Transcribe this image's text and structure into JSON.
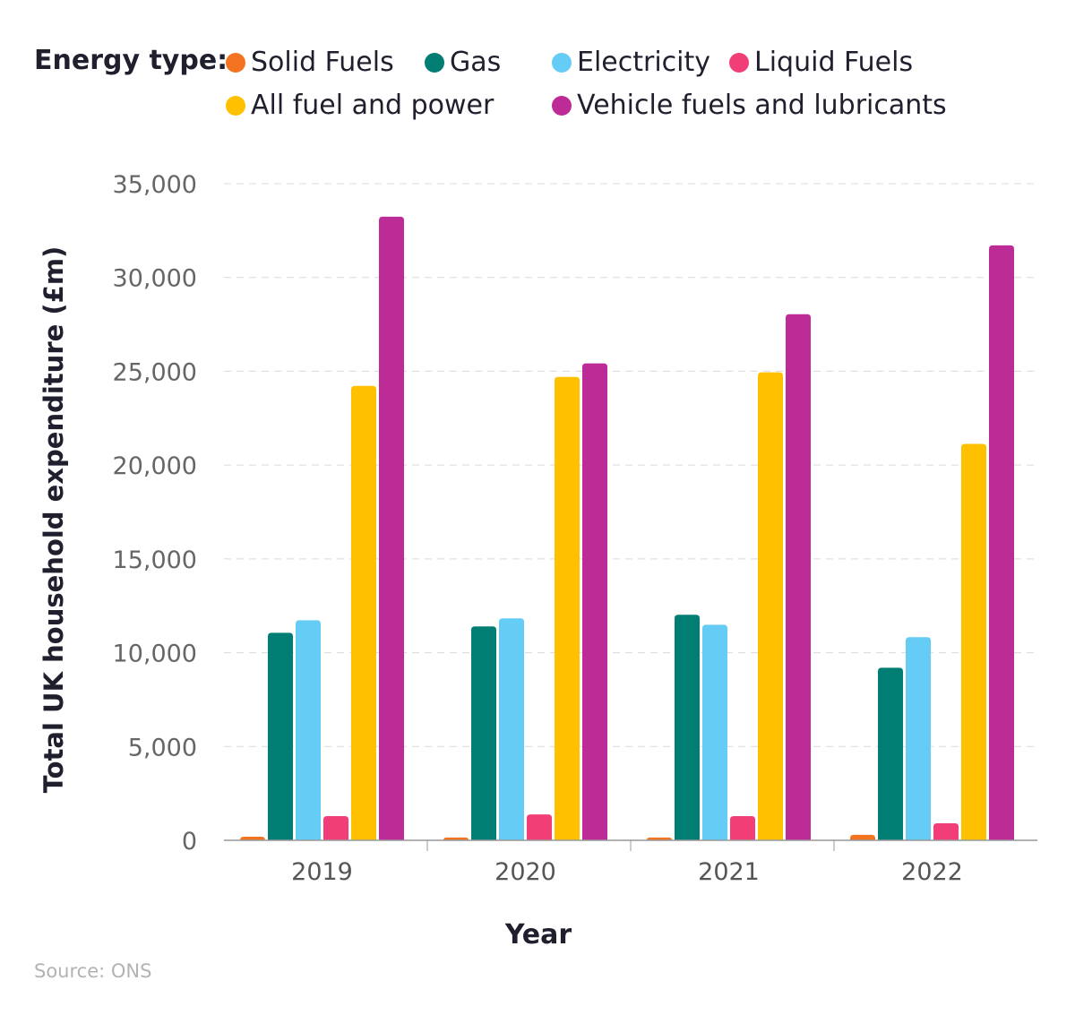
{
  "chart_data": {
    "type": "bar",
    "legend_title": "Energy type:",
    "legend_placement": "top",
    "categories": [
      "2019",
      "2020",
      "2021",
      "2022"
    ],
    "series": [
      {
        "name": "Solid Fuels",
        "color": "#f47320",
        "values": [
          190,
          150,
          150,
          290
        ]
      },
      {
        "name": "Gas",
        "color": "#017e73",
        "values": [
          11060,
          11400,
          12020,
          9200
        ]
      },
      {
        "name": "Electricity",
        "color": "#65ccf5",
        "values": [
          11730,
          11830,
          11490,
          10830
        ]
      },
      {
        "name": "Liquid Fuels",
        "color": "#f23e76",
        "values": [
          1290,
          1380,
          1290,
          910
        ]
      },
      {
        "name": "All fuel and power",
        "color": "#ffc000",
        "values": [
          24220,
          24700,
          24940,
          21130
        ]
      },
      {
        "name": "Vehicle fuels and lubricants",
        "color": "#bd2b96",
        "values": [
          33240,
          25420,
          28040,
          31710
        ]
      }
    ],
    "xlabel": "Year",
    "ylabel": "Total UK household expenditure (£m)",
    "ylim": [
      0,
      35000
    ],
    "yticks": [
      "0",
      "5,000",
      "10,000",
      "15,000",
      "20,000",
      "25,000",
      "30,000",
      "35,000"
    ],
    "grid": true
  },
  "source": "Source: ONS"
}
